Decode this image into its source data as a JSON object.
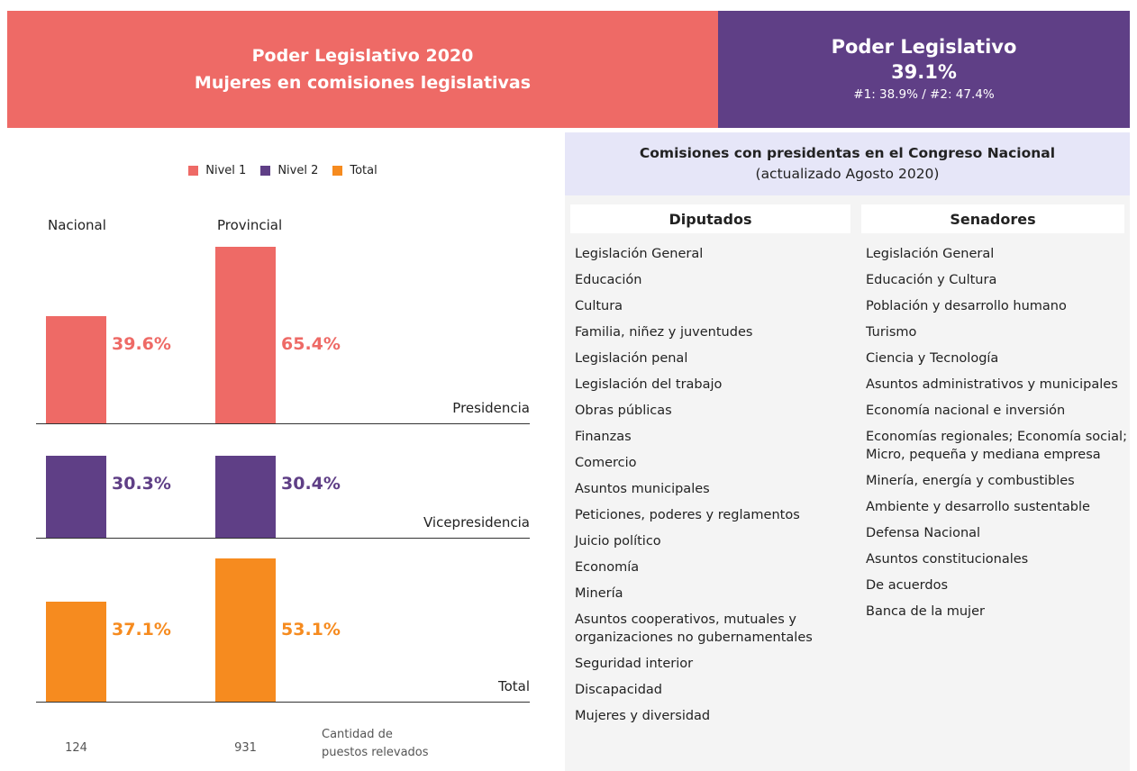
{
  "header": {
    "title": "Poder Legislativo 2020",
    "subtitle": "Mujeres en comisiones legislativas"
  },
  "kpi": {
    "label": "Poder Legislativo",
    "value": "39.1%",
    "detail": "#1: 38.9% / #2: 47.4%"
  },
  "chart_data": [
    {
      "type": "bar",
      "label": "Presidencia",
      "categories": [
        "Nacional",
        "Provincial"
      ],
      "series": [
        {
          "name": "Nivel 1",
          "color": "#ee6a66",
          "values": [
            39.6,
            65.4
          ],
          "value_labels": [
            "39.6%",
            "65.4%"
          ]
        }
      ]
    },
    {
      "type": "bar",
      "label": "Vicepresidencia",
      "series": [
        {
          "name": "Nivel 2",
          "color": "#5f3f86",
          "values": [
            30.3,
            30.4
          ],
          "value_labels": [
            "30.3%",
            "30.4%"
          ]
        }
      ]
    },
    {
      "type": "bar",
      "label": "Total",
      "series": [
        {
          "name": "Total",
          "color": "#f68b1f",
          "values": [
            37.1,
            53.1
          ],
          "value_labels": [
            "37.1%",
            "53.1%"
          ]
        }
      ]
    }
  ],
  "counts": {
    "label": "Cantidad de puestos relevados",
    "values": [
      124,
      931
    ]
  },
  "panel": {
    "title": "Comisiones con presidentas en el Congreso Nacional",
    "subtitle": "(actualizado Agosto 2020)",
    "columns": [
      {
        "name": "Diputados",
        "items": [
          "Legislación General",
          "Educación",
          "Cultura",
          "Familia, niñez y juventudes",
          "Legislación penal",
          "Legislación del trabajo",
          "Obras públicas",
          "Finanzas",
          "Comercio",
          "Asuntos municipales",
          "Peticiones, poderes y reglamentos",
          "Juicio político",
          "Economía",
          "Minería",
          "Asuntos cooperativos, mutuales y organizaciones no gubernamentales",
          "Seguridad interior",
          "Discapacidad",
          "Mujeres y diversidad"
        ]
      },
      {
        "name": "Senadores",
        "items": [
          "Legislación General",
          "Educación y Cultura",
          "Población y desarrollo humano",
          "Turismo",
          "Ciencia y Tecnología",
          "Asuntos administrativos y municipales",
          "Economía nacional e inversión",
          "Economías regionales; Economía social; Micro, pequeña y mediana empresa",
          "Minería, energía y combustibles",
          "Ambiente y desarrollo sustentable",
          "Defensa Nacional",
          "Asuntos constitucionales",
          "De acuerdos",
          "Banca de la mujer"
        ]
      }
    ]
  }
}
